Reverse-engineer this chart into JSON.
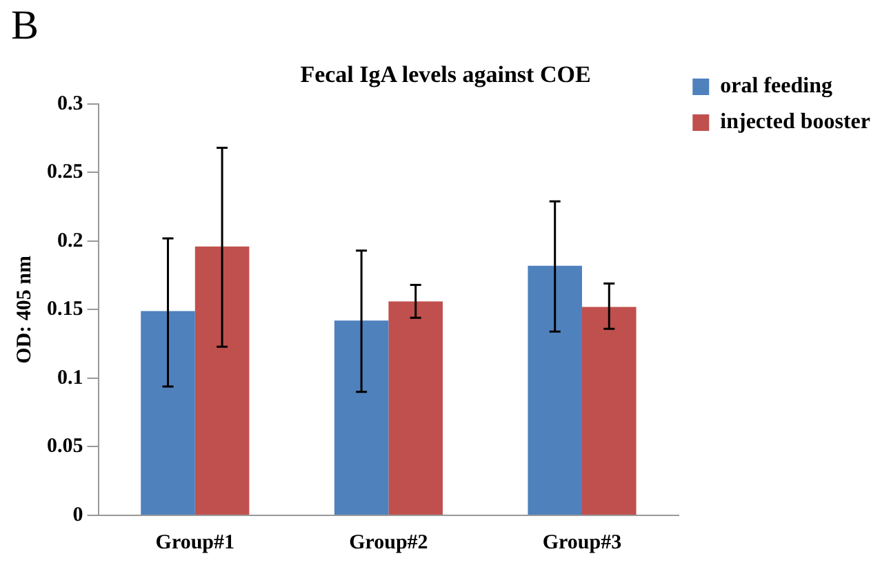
{
  "chart_data": {
    "type": "bar",
    "title": "Fecal IgA levels against COE",
    "ylabel": "OD: 405 nm",
    "annotations": [
      "B"
    ],
    "categories": [
      "Group#1",
      "Group#2",
      "Group#3"
    ],
    "series": [
      {
        "name": "oral feeding",
        "color": "#4f81bd",
        "values": [
          0.149,
          0.142,
          0.182
        ],
        "errors": [
          [
            0.094,
            0.202
          ],
          [
            0.09,
            0.193
          ],
          [
            0.134,
            0.229
          ]
        ]
      },
      {
        "name": "injected booster",
        "color": "#c0504d",
        "values": [
          0.196,
          0.156,
          0.152
        ],
        "errors": [
          [
            0.123,
            0.268
          ],
          [
            0.144,
            0.168
          ],
          [
            0.136,
            0.169
          ]
        ]
      }
    ],
    "ylim": [
      0,
      0.3
    ],
    "yticks": [
      0,
      0.05,
      0.1,
      0.15,
      0.2,
      0.25,
      0.3
    ],
    "grid": false,
    "legend": "right"
  }
}
